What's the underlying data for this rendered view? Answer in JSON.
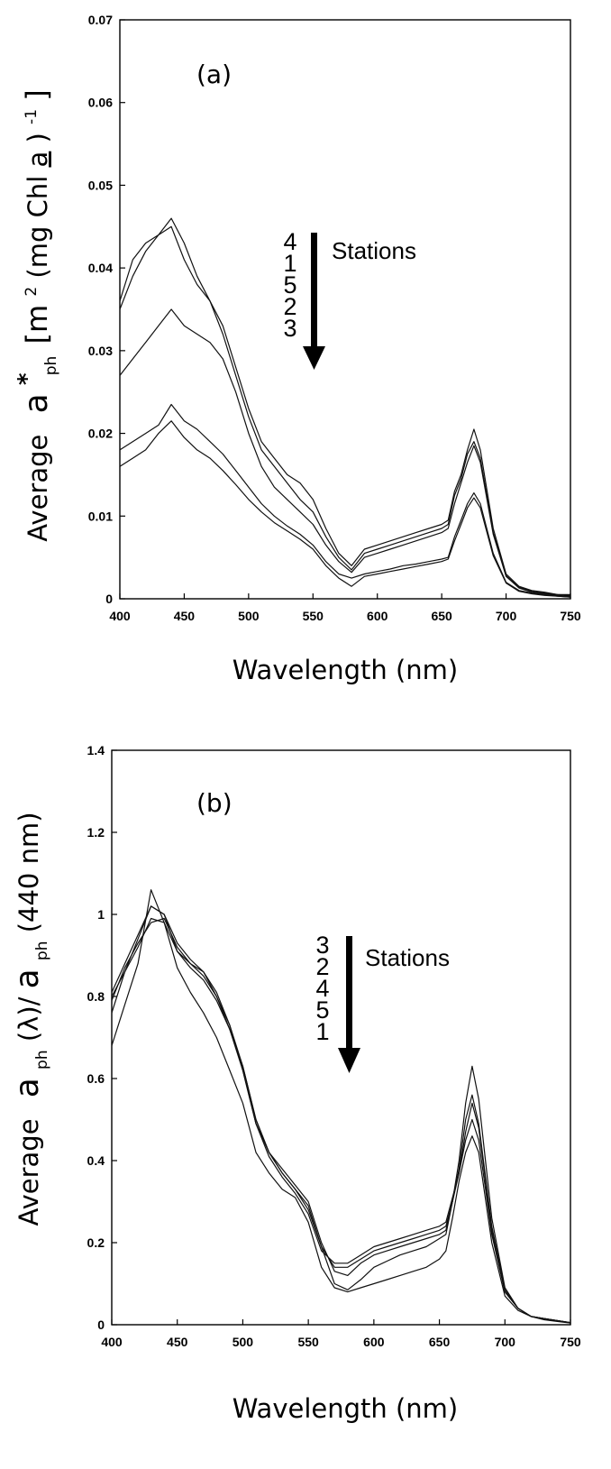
{
  "chart_data": [
    {
      "type": "line",
      "panel_label": "(a)",
      "xlabel": "Wavelength (nm)",
      "ylabel_text": "Average",
      "ylabel_symbol": "a",
      "ylabel_sup": "*",
      "ylabel_sub": "ph",
      "ylabel_units_a": "[m",
      "ylabel_units_sup2": "2",
      "ylabel_units_b": "(mg Chl ",
      "ylabel_units_a_u": "a",
      "ylabel_units_c": ")",
      "ylabel_units_supm1": "-1",
      "ylabel_units_d": "]",
      "xlim": [
        400,
        750
      ],
      "ylim": [
        0,
        0.07
      ],
      "xticks": [
        "400",
        "450",
        "500",
        "550",
        "600",
        "650",
        "700",
        "750"
      ],
      "yticks": [
        "0",
        "0.01",
        "0.02",
        "0.03",
        "0.04",
        "0.05",
        "0.06",
        "0.07"
      ],
      "stations_label": "Stations",
      "station_order": [
        "4",
        "1",
        "5",
        "2",
        "3"
      ],
      "x": [
        400,
        410,
        420,
        430,
        440,
        450,
        460,
        470,
        480,
        490,
        500,
        510,
        520,
        530,
        540,
        550,
        560,
        570,
        580,
        590,
        600,
        610,
        620,
        630,
        640,
        650,
        655,
        660,
        665,
        670,
        675,
        680,
        690,
        700,
        710,
        720,
        730,
        740,
        750
      ],
      "series": [
        {
          "values": [
            0.036,
            0.041,
            0.043,
            0.044,
            0.045,
            0.041,
            0.038,
            0.036,
            0.033,
            0.028,
            0.023,
            0.019,
            0.017,
            0.015,
            0.014,
            0.012,
            0.0085,
            0.0055,
            0.004,
            0.006,
            0.0065,
            0.007,
            0.0075,
            0.008,
            0.0085,
            0.009,
            0.0095,
            0.013,
            0.015,
            0.018,
            0.0205,
            0.018,
            0.0085,
            0.003,
            0.0015,
            0.001,
            0.0008,
            0.0005,
            0.0005
          ]
        },
        {
          "values": [
            0.035,
            0.039,
            0.042,
            0.044,
            0.046,
            0.043,
            0.039,
            0.036,
            0.032,
            0.027,
            0.022,
            0.018,
            0.016,
            0.014,
            0.012,
            0.0105,
            0.0075,
            0.005,
            0.0035,
            0.0055,
            0.006,
            0.0065,
            0.007,
            0.0075,
            0.008,
            0.0085,
            0.009,
            0.0125,
            0.0145,
            0.0175,
            0.019,
            0.017,
            0.008,
            0.0028,
            0.0014,
            0.0009,
            0.0007,
            0.0005,
            0.0004
          ]
        },
        {
          "values": [
            0.027,
            0.029,
            0.031,
            0.033,
            0.035,
            0.033,
            0.032,
            0.031,
            0.029,
            0.025,
            0.02,
            0.016,
            0.0135,
            0.012,
            0.0105,
            0.009,
            0.0065,
            0.0045,
            0.0032,
            0.005,
            0.0055,
            0.006,
            0.0065,
            0.007,
            0.0075,
            0.008,
            0.0085,
            0.0115,
            0.014,
            0.0165,
            0.0185,
            0.0165,
            0.0078,
            0.0027,
            0.0013,
            0.0008,
            0.0006,
            0.0004,
            0.0003
          ]
        },
        {
          "values": [
            0.018,
            0.019,
            0.02,
            0.021,
            0.0235,
            0.0215,
            0.0205,
            0.019,
            0.0175,
            0.0155,
            0.0135,
            0.0115,
            0.01,
            0.0088,
            0.0078,
            0.0065,
            0.0045,
            0.003,
            0.0025,
            0.003,
            0.0033,
            0.0036,
            0.004,
            0.0042,
            0.0045,
            0.0048,
            0.005,
            0.0075,
            0.0095,
            0.0115,
            0.0128,
            0.0115,
            0.0055,
            0.002,
            0.001,
            0.0007,
            0.0005,
            0.0003,
            0.0002
          ]
        },
        {
          "values": [
            0.016,
            0.017,
            0.018,
            0.02,
            0.0215,
            0.0195,
            0.018,
            0.017,
            0.0155,
            0.0138,
            0.012,
            0.0105,
            0.0092,
            0.0082,
            0.0072,
            0.006,
            0.004,
            0.0025,
            0.0015,
            0.0027,
            0.003,
            0.0033,
            0.0036,
            0.0039,
            0.0042,
            0.0045,
            0.0048,
            0.007,
            0.009,
            0.011,
            0.0122,
            0.011,
            0.0052,
            0.0019,
            0.0009,
            0.0006,
            0.0004,
            0.0003,
            0.0002
          ]
        }
      ]
    },
    {
      "type": "line",
      "panel_label": "(b)",
      "xlabel": "Wavelength (nm)",
      "ylabel_text": "Average",
      "ylabel_symbol": "a",
      "ylabel_sub": "ph",
      "ylabel_mid": "(λ)/",
      "ylabel_symbol2": "a",
      "ylabel_sub2": "ph",
      "ylabel_end": "(440 nm)",
      "xlim": [
        400,
        750
      ],
      "ylim": [
        0,
        1.4
      ],
      "xticks": [
        "400",
        "450",
        "500",
        "550",
        "600",
        "650",
        "700",
        "750"
      ],
      "yticks": [
        "0",
        "0.2",
        "0.4",
        "0.6",
        "0.8",
        "1",
        "1.2",
        "1.4"
      ],
      "stations_label": "Stations",
      "station_order": [
        "3",
        "2",
        "4",
        "5",
        "1"
      ],
      "x": [
        400,
        410,
        420,
        430,
        440,
        450,
        460,
        470,
        480,
        490,
        500,
        510,
        520,
        530,
        540,
        550,
        560,
        570,
        580,
        590,
        600,
        610,
        620,
        630,
        640,
        650,
        655,
        660,
        665,
        670,
        675,
        680,
        690,
        700,
        710,
        720,
        730,
        740,
        750
      ],
      "series": [
        {
          "values": [
            0.76,
            0.86,
            0.94,
            1.02,
            1.0,
            0.93,
            0.89,
            0.86,
            0.8,
            0.72,
            0.62,
            0.49,
            0.42,
            0.37,
            0.33,
            0.29,
            0.19,
            0.1,
            0.085,
            0.11,
            0.14,
            0.155,
            0.17,
            0.18,
            0.19,
            0.21,
            0.22,
            0.3,
            0.4,
            0.54,
            0.63,
            0.55,
            0.26,
            0.09,
            0.04,
            0.02,
            0.015,
            0.01,
            0.005
          ]
        },
        {
          "values": [
            0.79,
            0.87,
            0.93,
            0.98,
            0.99,
            0.92,
            0.88,
            0.85,
            0.8,
            0.73,
            0.63,
            0.5,
            0.42,
            0.38,
            0.34,
            0.3,
            0.2,
            0.13,
            0.12,
            0.15,
            0.17,
            0.18,
            0.19,
            0.2,
            0.21,
            0.22,
            0.23,
            0.3,
            0.38,
            0.5,
            0.56,
            0.49,
            0.24,
            0.085,
            0.04,
            0.02,
            0.015,
            0.01,
            0.005
          ]
        },
        {
          "values": [
            0.81,
            0.88,
            0.95,
            1.02,
            1.0,
            0.91,
            0.87,
            0.84,
            0.79,
            0.72,
            0.63,
            0.5,
            0.42,
            0.37,
            0.33,
            0.28,
            0.19,
            0.14,
            0.14,
            0.16,
            0.18,
            0.19,
            0.2,
            0.21,
            0.22,
            0.23,
            0.24,
            0.3,
            0.37,
            0.47,
            0.54,
            0.48,
            0.23,
            0.08,
            0.04,
            0.02,
            0.015,
            0.01,
            0.005
          ]
        },
        {
          "values": [
            0.8,
            0.86,
            0.92,
            0.99,
            0.98,
            0.91,
            0.88,
            0.86,
            0.81,
            0.73,
            0.62,
            0.49,
            0.41,
            0.36,
            0.32,
            0.27,
            0.18,
            0.15,
            0.15,
            0.17,
            0.19,
            0.2,
            0.21,
            0.22,
            0.23,
            0.24,
            0.25,
            0.31,
            0.37,
            0.45,
            0.5,
            0.45,
            0.22,
            0.08,
            0.04,
            0.02,
            0.015,
            0.01,
            0.005
          ]
        },
        {
          "values": [
            0.68,
            0.78,
            0.88,
            1.06,
            0.98,
            0.87,
            0.81,
            0.76,
            0.7,
            0.62,
            0.54,
            0.42,
            0.37,
            0.33,
            0.31,
            0.25,
            0.14,
            0.09,
            0.08,
            0.09,
            0.1,
            0.11,
            0.12,
            0.13,
            0.14,
            0.16,
            0.18,
            0.26,
            0.35,
            0.42,
            0.46,
            0.42,
            0.2,
            0.07,
            0.035,
            0.02,
            0.012,
            0.008,
            0.004
          ]
        }
      ]
    }
  ]
}
